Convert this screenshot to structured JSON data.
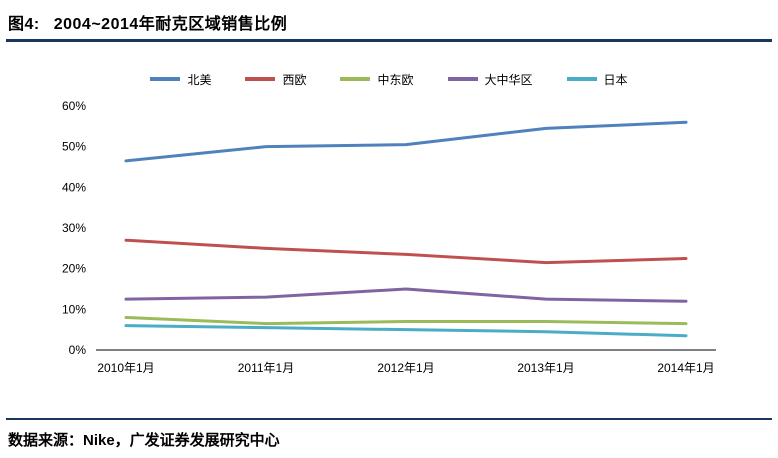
{
  "header": {
    "figure_label": "图4:",
    "title": "2004~2014年耐克区域销售比例"
  },
  "footer": {
    "source": "数据来源：Nike，广发证券发展研究中心"
  },
  "colors": {
    "rule": "#17375E"
  },
  "chart_data": {
    "type": "line",
    "title": "2004~2014年耐克区域销售比例",
    "categories": [
      "2010年1月",
      "2011年1月",
      "2012年1月",
      "2013年1月",
      "2014年1月"
    ],
    "series": [
      {
        "id": "north-america",
        "name": "北美",
        "color": "#4F81BD",
        "values": [
          46.5,
          50,
          50.5,
          54.5,
          56
        ]
      },
      {
        "id": "western-europe",
        "name": "西欧",
        "color": "#C0504D",
        "values": [
          27,
          25,
          23.5,
          21.5,
          22.5
        ]
      },
      {
        "id": "central-eastern-europe",
        "name": "中东欧",
        "color": "#9BBB59",
        "values": [
          8,
          6.5,
          7,
          7,
          6.5
        ]
      },
      {
        "id": "greater-china",
        "name": "大中华区",
        "color": "#8064A2",
        "values": [
          12.5,
          13,
          15,
          12.5,
          12
        ]
      },
      {
        "id": "japan",
        "name": "日本",
        "color": "#4BACC6",
        "values": [
          6,
          5.5,
          5,
          4.5,
          3.5
        ]
      }
    ],
    "xlabel": "",
    "ylabel": "",
    "ylim": [
      0,
      60
    ],
    "ytick_step": 10,
    "ytick_suffix": "%",
    "grid": false,
    "legend_position": "top"
  }
}
